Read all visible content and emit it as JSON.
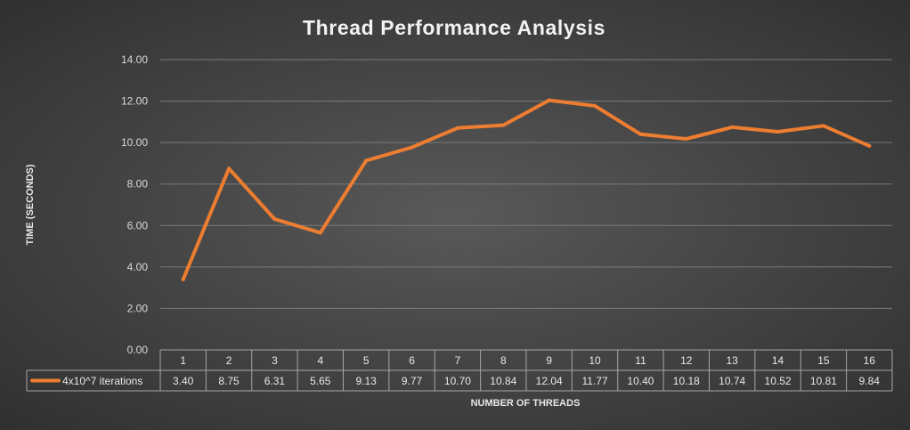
{
  "chart_data": {
    "type": "line",
    "title": "Thread Performance Analysis",
    "xlabel": "NUMBER OF THREADS",
    "ylabel": "TIME (SECONDS)",
    "ylim": [
      0,
      14
    ],
    "yticks": [
      "0.00",
      "2.00",
      "4.00",
      "6.00",
      "8.00",
      "10.00",
      "12.00",
      "14.00"
    ],
    "categories": [
      "1",
      "2",
      "3",
      "4",
      "5",
      "6",
      "7",
      "8",
      "9",
      "10",
      "11",
      "12",
      "13",
      "14",
      "15",
      "16"
    ],
    "series": [
      {
        "name": "4x10^7 iterations",
        "color": "#ed7d31",
        "values": [
          3.4,
          8.75,
          6.31,
          5.65,
          9.13,
          9.77,
          10.7,
          10.84,
          12.04,
          11.77,
          10.4,
          10.18,
          10.74,
          10.52,
          10.81,
          9.84
        ],
        "labels": [
          "3.40",
          "8.75",
          "6.31",
          "5.65",
          "9.13",
          "9.77",
          "10.70",
          "10.84",
          "12.04",
          "11.77",
          "10.40",
          "10.18",
          "10.74",
          "10.52",
          "10.81",
          "9.84"
        ]
      }
    ],
    "grid": true,
    "legend": "data-table"
  }
}
